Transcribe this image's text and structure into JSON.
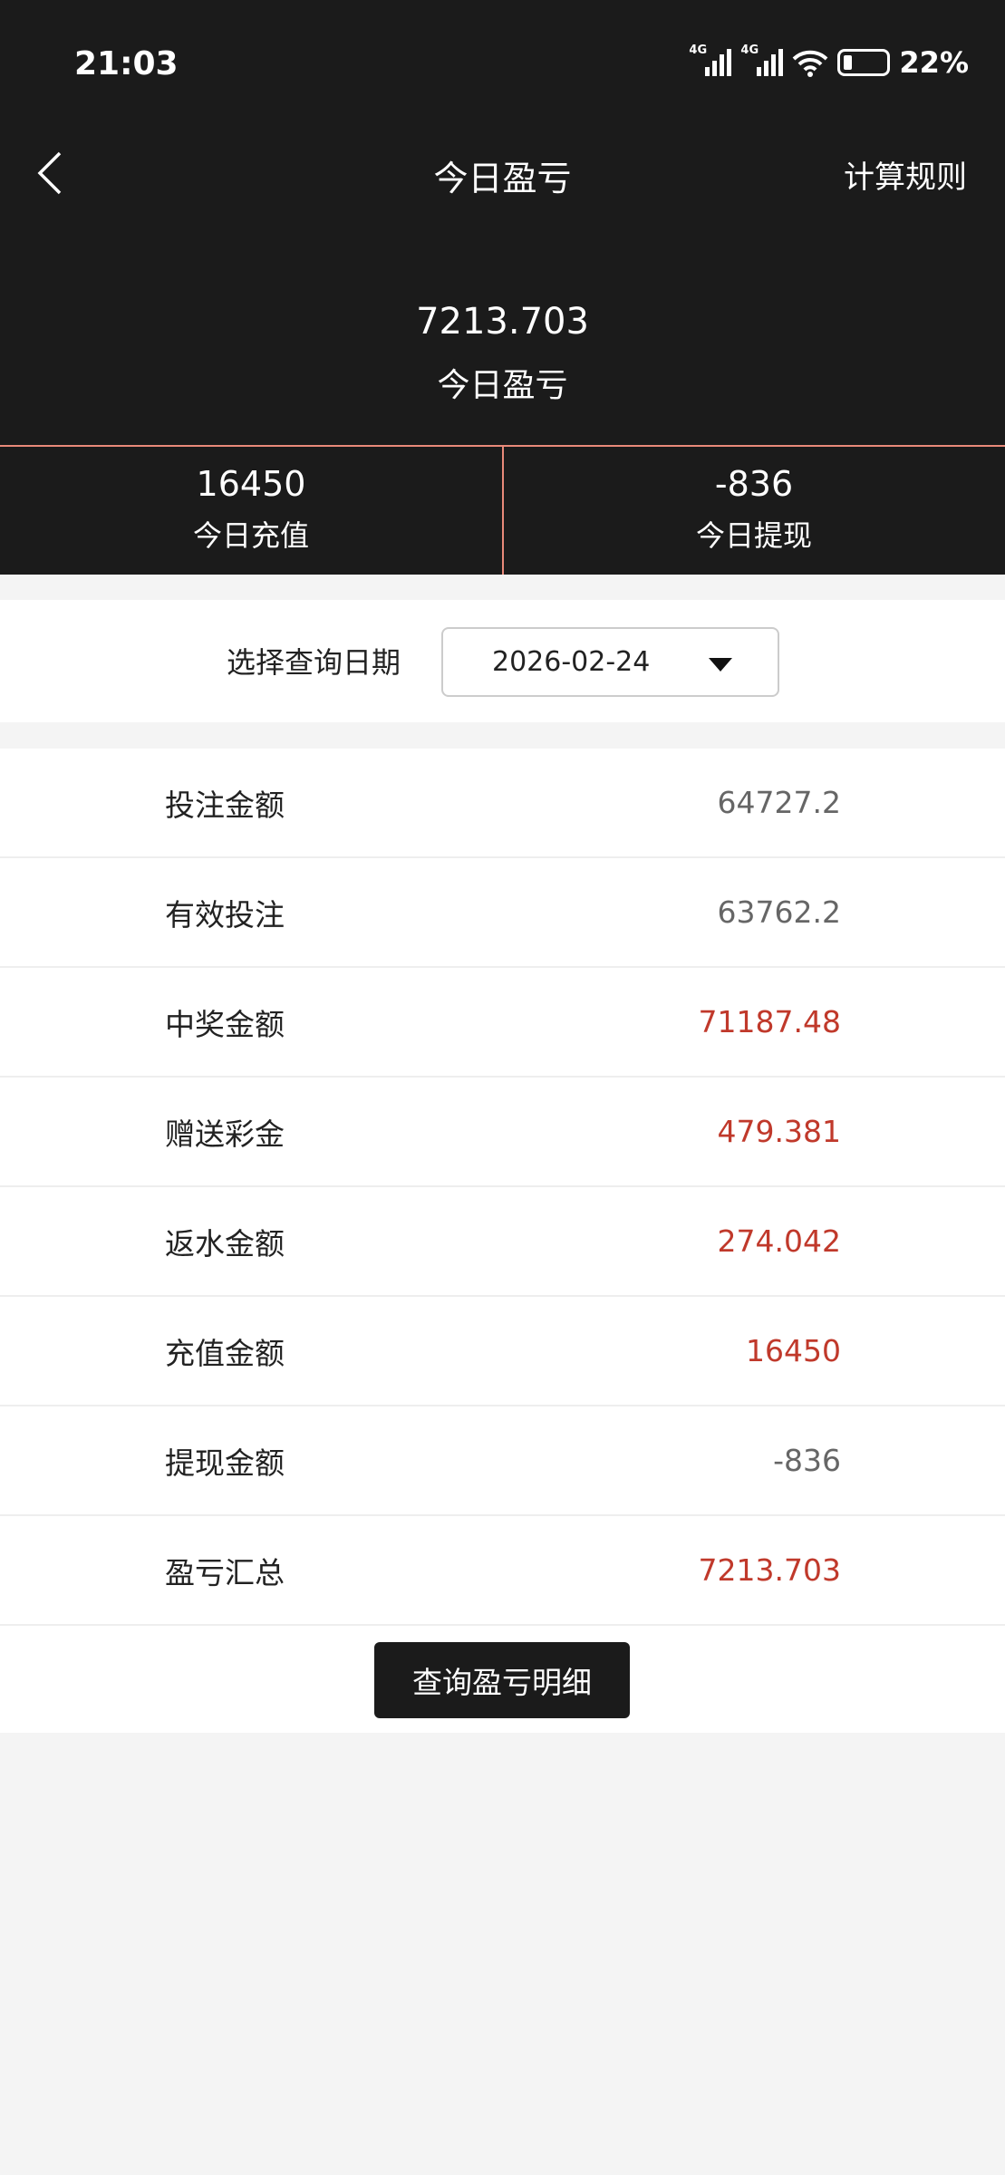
{
  "status_bar": {
    "time": "21:03",
    "network1": "4G",
    "network2": "4G",
    "battery": "22%"
  },
  "nav": {
    "title": "今日盈亏",
    "right_link": "计算规则"
  },
  "summary": {
    "value": "7213.703",
    "label": "今日盈亏"
  },
  "stats": [
    {
      "value": "16450",
      "label": "今日充值"
    },
    {
      "value": "-836",
      "label": "今日提现"
    }
  ],
  "date_filter": {
    "label": "选择查询日期",
    "selected": "2026-02-24"
  },
  "rows": [
    {
      "label": "投注金额",
      "value": "64727.2",
      "color": "gray"
    },
    {
      "label": "有效投注",
      "value": "63762.2",
      "color": "gray"
    },
    {
      "label": "中奖金额",
      "value": "71187.48",
      "color": "red"
    },
    {
      "label": "赠送彩金",
      "value": "479.381",
      "color": "red"
    },
    {
      "label": "返水金额",
      "value": "274.042",
      "color": "red"
    },
    {
      "label": "充值金额",
      "value": "16450",
      "color": "red"
    },
    {
      "label": "提现金额",
      "value": "-836",
      "color": "gray"
    },
    {
      "label": "盈亏汇总",
      "value": "7213.703",
      "color": "red"
    }
  ],
  "detail_button": "查询盈亏明细",
  "colors": {
    "header_bg": "#1b1b1b",
    "accent_line": "#e98a7a",
    "positive_red": "#c0392b",
    "neutral_gray": "#666666"
  }
}
